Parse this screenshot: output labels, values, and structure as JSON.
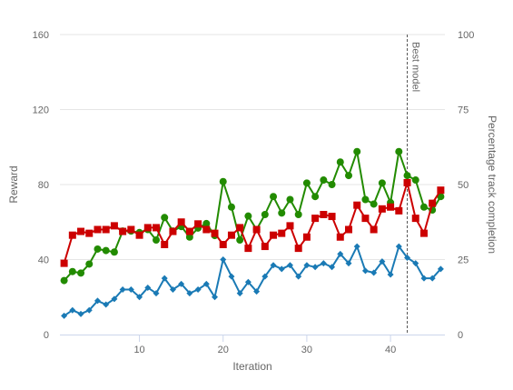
{
  "chart_data": {
    "type": "line",
    "xlabel": "Iteration",
    "ylabel": "Reward",
    "y2label": "Percentage track completion",
    "xlim": [
      0.5,
      46.5
    ],
    "ylim": [
      0,
      160
    ],
    "y2lim": [
      0,
      100
    ],
    "x_ticks": [
      10,
      20,
      30,
      40
    ],
    "y_ticks": [
      0,
      40,
      80,
      120,
      160
    ],
    "y2_ticks": [
      0,
      25,
      50,
      75,
      100
    ],
    "grid": "horizontal",
    "annotation": {
      "x": 42,
      "label": "Best model"
    },
    "series": [
      {
        "color": "#228b00",
        "marker": "circle",
        "axis": "right",
        "x": [
          1,
          2,
          3,
          4,
          5,
          6,
          7,
          8,
          9,
          10,
          11,
          12,
          13,
          14,
          15,
          16,
          17,
          18,
          19,
          20,
          21,
          22,
          23,
          24,
          25,
          26,
          27,
          28,
          29,
          30,
          31,
          32,
          33,
          34,
          35,
          36,
          37,
          38,
          39,
          40,
          41,
          42,
          43,
          44,
          45,
          46
        ],
        "values": [
          18,
          21,
          20.5,
          23.5,
          28.5,
          28,
          27.5,
          34.5,
          34.5,
          34,
          35,
          31.5,
          39,
          34.5,
          36,
          32.5,
          35.5,
          37,
          33,
          51,
          42.5,
          31.5,
          39.5,
          35,
          40,
          46,
          40.5,
          45,
          40,
          50.5,
          46,
          51.5,
          50,
          57.5,
          53,
          61,
          45,
          43.5,
          50.5,
          44,
          61,
          53,
          51.5,
          42.5,
          41.5,
          46
        ]
      },
      {
        "color": "#cc0000",
        "marker": "square",
        "axis": "left",
        "x": [
          1,
          2,
          3,
          4,
          5,
          6,
          7,
          8,
          9,
          10,
          11,
          12,
          13,
          14,
          15,
          16,
          17,
          18,
          19,
          20,
          21,
          22,
          23,
          24,
          25,
          26,
          27,
          28,
          29,
          30,
          31,
          32,
          33,
          34,
          35,
          36,
          37,
          38,
          39,
          40,
          41,
          42,
          43,
          44,
          45,
          46
        ],
        "values": [
          38,
          53,
          55,
          54,
          56,
          56,
          58,
          55,
          56,
          53,
          57,
          57,
          48,
          55,
          60,
          55,
          59,
          56,
          54,
          48,
          53,
          57,
          46,
          56,
          47,
          53,
          54,
          58,
          46,
          52,
          62,
          64,
          63,
          52,
          56,
          69,
          62,
          56,
          67,
          68,
          66,
          81,
          62,
          54,
          70,
          77
        ]
      },
      {
        "color": "#1a7ab5",
        "marker": "diamond",
        "axis": "left",
        "x": [
          1,
          2,
          3,
          4,
          5,
          6,
          7,
          8,
          9,
          10,
          11,
          12,
          13,
          14,
          15,
          16,
          17,
          18,
          19,
          20,
          21,
          22,
          23,
          24,
          25,
          26,
          27,
          28,
          29,
          30,
          31,
          32,
          33,
          34,
          35,
          36,
          37,
          38,
          39,
          40,
          41,
          42,
          43,
          44,
          45,
          46
        ],
        "values": [
          10,
          13,
          11,
          13,
          18,
          16,
          19,
          24,
          24,
          20,
          25,
          22,
          30,
          24,
          27,
          22,
          24,
          27,
          20,
          40,
          31,
          22,
          28,
          23,
          31,
          37,
          35,
          37,
          31,
          37,
          36,
          38,
          36,
          43,
          38,
          47,
          34,
          33,
          39,
          32,
          47,
          41,
          38,
          30,
          30,
          35
        ]
      }
    ]
  }
}
